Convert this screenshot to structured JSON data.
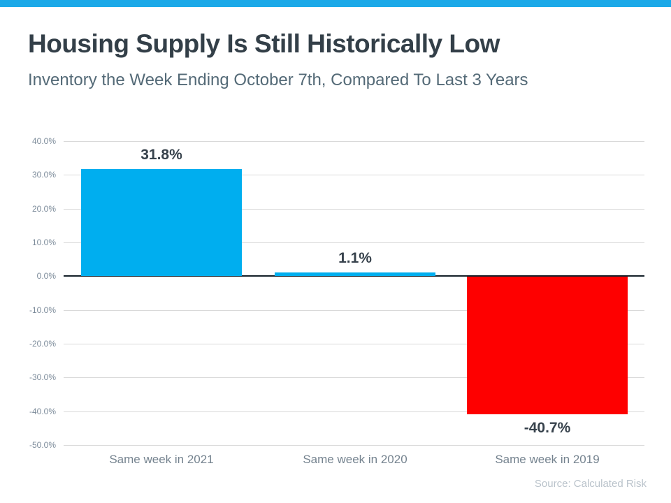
{
  "banner": {
    "color": "#1BA9E8"
  },
  "header": {
    "title": "Housing Supply Is Still Historically Low",
    "subtitle": "Inventory the Week Ending October 7th, Compared To Last 3 Years"
  },
  "chart_data": {
    "type": "bar",
    "title": "Housing Supply Is Still Historically Low",
    "subtitle": "Inventory the Week Ending October 7th, Compared To Last 3 Years",
    "categories": [
      "Same week in 2021",
      "Same week in 2020",
      "Same week in 2019"
    ],
    "values": [
      31.8,
      1.1,
      -40.7
    ],
    "value_labels": [
      "31.8%",
      "1.1%",
      "-40.7%"
    ],
    "bar_colors": [
      "#00AEEF",
      "#00AEEF",
      "#FE0000"
    ],
    "ylim": [
      -50,
      40
    ],
    "ytick_step": 10,
    "ytick_labels": [
      "40.0%",
      "30.0%",
      "20.0%",
      "10.0%",
      "0.0%",
      "-10.0%",
      "-20.0%",
      "-30.0%",
      "-40.0%",
      "-50.0%"
    ],
    "ytick_values": [
      40,
      30,
      20,
      10,
      0,
      -10,
      -20,
      -30,
      -40,
      -50
    ],
    "grid": true,
    "zero_line": true,
    "legend": "none",
    "xlabel": "",
    "ylabel": ""
  },
  "footer": {
    "source": "Source: Calculated Risk"
  },
  "colors": {
    "banner_blue": "#1BA9E8",
    "bar_blue": "#00AEEF",
    "bar_red": "#FE0000",
    "gridline": "#D9D9D9",
    "zero_line": "#152029",
    "title_text": "#333F48",
    "subtitle_text": "#546A77",
    "ytick_text": "#7B8A99",
    "category_text": "#75838F",
    "value_label_text": "#37424C",
    "source_text": "#BAC3CB"
  }
}
